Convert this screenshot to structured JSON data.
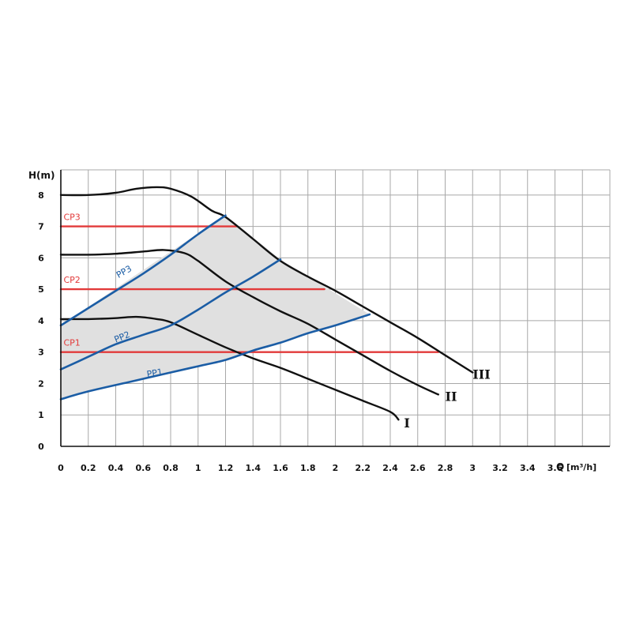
{
  "chart_data": {
    "type": "line",
    "xlabel": "Q",
    "xunit": "[m³/h]",
    "ylabel": "H(m)",
    "xlim": [
      0,
      4
    ],
    "ylim": [
      0,
      8.8
    ],
    "x_ticks": [
      "0",
      "0.2",
      "0.4",
      "0.6",
      "0.8",
      "1",
      "1.2",
      "1.4",
      "1.6",
      "1.8",
      "2",
      "2.2",
      "2.4",
      "2.6",
      "2.8",
      "3",
      "3.2",
      "3.4",
      "3.6"
    ],
    "y_ticks": [
      "0",
      "1",
      "2",
      "3",
      "4",
      "5",
      "6",
      "7",
      "8"
    ],
    "grid": true,
    "shaded_region": {
      "color": "#e0e0e0",
      "points": [
        [
          0,
          1.5
        ],
        [
          0.2,
          1.75
        ],
        [
          0.5,
          2.05
        ],
        [
          0.8,
          2.35
        ],
        [
          1.0,
          2.55
        ],
        [
          1.2,
          2.75
        ],
        [
          2.25,
          4.2
        ],
        [
          1.6,
          5.95
        ],
        [
          1.2,
          7.35
        ],
        [
          0.8,
          6.2
        ],
        [
          0,
          3.85
        ]
      ]
    },
    "series": [
      {
        "name": "I",
        "color": "#111111",
        "group": "speed_curve",
        "x": [
          0,
          0.2,
          0.4,
          0.55,
          0.7,
          0.8,
          1.0,
          1.2,
          1.4,
          1.6,
          1.8,
          2.0,
          2.2,
          2.4,
          2.46
        ],
        "y": [
          4.05,
          4.05,
          4.08,
          4.12,
          4.05,
          3.95,
          3.55,
          3.15,
          2.8,
          2.5,
          2.15,
          1.8,
          1.45,
          1.1,
          0.85
        ]
      },
      {
        "name": "II",
        "color": "#111111",
        "group": "speed_curve",
        "x": [
          0,
          0.2,
          0.4,
          0.6,
          0.75,
          0.9,
          1.0,
          1.2,
          1.4,
          1.6,
          1.8,
          2.0,
          2.2,
          2.4,
          2.6,
          2.75
        ],
        "y": [
          6.1,
          6.1,
          6.13,
          6.2,
          6.25,
          6.15,
          5.9,
          5.25,
          4.75,
          4.3,
          3.9,
          3.4,
          2.9,
          2.4,
          1.95,
          1.65
        ]
      },
      {
        "name": "III",
        "color": "#111111",
        "group": "speed_curve",
        "x": [
          0,
          0.2,
          0.4,
          0.55,
          0.7,
          0.8,
          0.95,
          1.1,
          1.2,
          1.4,
          1.6,
          1.8,
          2.0,
          2.2,
          2.4,
          2.6,
          2.8,
          3.0
        ],
        "y": [
          8.0,
          8.0,
          8.07,
          8.2,
          8.25,
          8.2,
          7.95,
          7.5,
          7.3,
          6.6,
          5.9,
          5.4,
          4.95,
          4.45,
          3.95,
          3.45,
          2.9,
          2.35
        ]
      },
      {
        "name": "CP1",
        "color": "#e23a3a",
        "group": "constant_pressure",
        "x": [
          0,
          2.75
        ],
        "y": [
          3.0,
          3.0
        ]
      },
      {
        "name": "CP2",
        "color": "#e23a3a",
        "group": "constant_pressure",
        "x": [
          0,
          1.92
        ],
        "y": [
          5.0,
          5.0
        ]
      },
      {
        "name": "CP3",
        "color": "#e23a3a",
        "group": "constant_pressure",
        "x": [
          0,
          1.28
        ],
        "y": [
          7.0,
          7.0
        ]
      },
      {
        "name": "PP1",
        "color": "#1b5da5",
        "group": "proportional_pressure",
        "x": [
          0,
          0.2,
          0.5,
          0.8,
          1.0,
          1.2,
          1.4,
          1.6,
          1.8,
          2.0,
          2.25
        ],
        "y": [
          1.5,
          1.75,
          2.05,
          2.35,
          2.55,
          2.75,
          3.05,
          3.3,
          3.6,
          3.85,
          4.2
        ]
      },
      {
        "name": "PP2",
        "color": "#1b5da5",
        "group": "proportional_pressure",
        "x": [
          0,
          0.2,
          0.4,
          0.6,
          0.8,
          1.0,
          1.2,
          1.4,
          1.6
        ],
        "y": [
          2.45,
          2.85,
          3.25,
          3.55,
          3.85,
          4.35,
          4.9,
          5.4,
          5.95
        ]
      },
      {
        "name": "PP3",
        "color": "#1b5da5",
        "group": "proportional_pressure",
        "x": [
          0,
          0.2,
          0.4,
          0.6,
          0.8,
          1.0,
          1.2
        ],
        "y": [
          3.85,
          4.4,
          4.95,
          5.5,
          6.1,
          6.75,
          7.35
        ]
      }
    ],
    "annotations": [
      {
        "text": "CP3",
        "color": "#e23a3a",
        "x": 0.02,
        "y": 7.2
      },
      {
        "text": "CP2",
        "color": "#e23a3a",
        "x": 0.02,
        "y": 5.2
      },
      {
        "text": "CP1",
        "color": "#e23a3a",
        "x": 0.02,
        "y": 3.2
      },
      {
        "text": "PP3",
        "color": "#1b5da5",
        "x": 0.42,
        "y": 5.35,
        "angle": -30
      },
      {
        "text": "PP2",
        "color": "#1b5da5",
        "x": 0.4,
        "y": 3.3,
        "angle": -22
      },
      {
        "text": "PP1",
        "color": "#1b5da5",
        "x": 0.63,
        "y": 2.2,
        "angle": -10
      },
      {
        "text": "I",
        "color": "#111111",
        "x": 2.5,
        "y": 0.6
      },
      {
        "text": "II",
        "color": "#111111",
        "x": 2.8,
        "y": 1.45
      },
      {
        "text": "III",
        "color": "#111111",
        "x": 3.0,
        "y": 2.15
      }
    ]
  }
}
